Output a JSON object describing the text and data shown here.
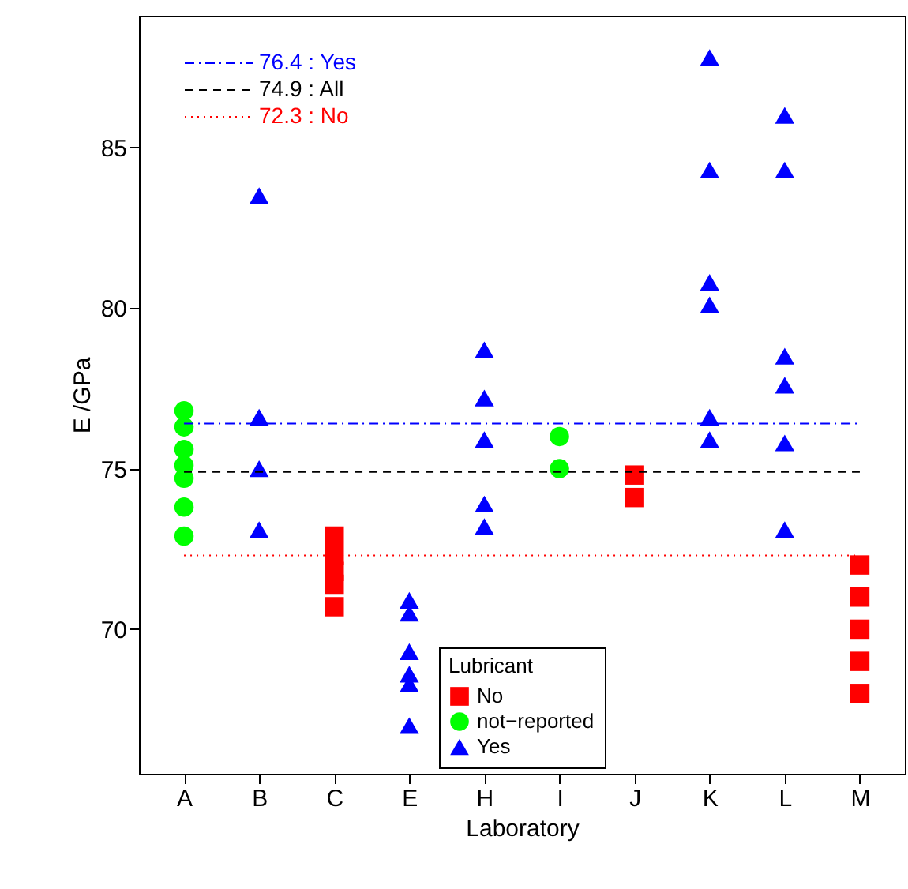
{
  "chart_data": {
    "type": "scatter",
    "xlabel": "Laboratory",
    "ylabel": "E /GPa",
    "legend_title": "Lubricant",
    "legend": "bottom",
    "grid": false,
    "categories": [
      "A",
      "B",
      "C",
      "E",
      "H",
      "I",
      "J",
      "K",
      "L",
      "M"
    ],
    "ylim": [
      65.5,
      89.1
    ],
    "yticks": [
      70,
      75,
      80,
      85
    ],
    "series": [
      {
        "name": "No",
        "color": "#ff0000",
        "marker": "square",
        "x": [
          "C",
          "C",
          "C",
          "C",
          "C",
          "J",
          "J",
          "M",
          "M",
          "M",
          "M",
          "M"
        ],
        "values": [
          72.9,
          72.3,
          71.8,
          71.4,
          70.7,
          74.8,
          74.1,
          72.0,
          71.0,
          70.0,
          69.0,
          68.0
        ]
      },
      {
        "name": "not−reported",
        "color": "#00ff00",
        "marker": "circle",
        "x": [
          "A",
          "A",
          "A",
          "A",
          "A",
          "A",
          "A",
          "I",
          "I"
        ],
        "values": [
          76.8,
          76.3,
          75.6,
          75.1,
          74.7,
          73.8,
          72.9,
          76.0,
          75.0
        ]
      },
      {
        "name": "Yes",
        "color": "#0000ff",
        "marker": "triangle",
        "x": [
          "B",
          "B",
          "B",
          "B",
          "E",
          "E",
          "E",
          "E",
          "E",
          "E",
          "H",
          "H",
          "H",
          "H",
          "H",
          "K",
          "K",
          "K",
          "K",
          "K",
          "K",
          "L",
          "L",
          "L",
          "L",
          "L",
          "L"
        ],
        "values": [
          83.5,
          76.6,
          75.0,
          73.1,
          70.9,
          70.5,
          69.3,
          68.6,
          68.3,
          67.0,
          78.7,
          77.2,
          75.9,
          73.9,
          73.2,
          87.8,
          84.3,
          80.8,
          80.1,
          76.6,
          75.9,
          86.0,
          84.3,
          78.5,
          77.6,
          75.8,
          73.1
        ]
      }
    ],
    "ref_lines": [
      {
        "axis": "y",
        "value": 76.4,
        "label": "76.4 : Yes",
        "color": "#0000ff",
        "line_style": "dashdot"
      },
      {
        "axis": "y",
        "value": 74.9,
        "label": "74.9 : All",
        "color": "#000000",
        "line_style": "dashed"
      },
      {
        "axis": "y",
        "value": 72.3,
        "label": "72.3 : No",
        "color": "#ff0000",
        "line_style": "dotted"
      }
    ]
  }
}
